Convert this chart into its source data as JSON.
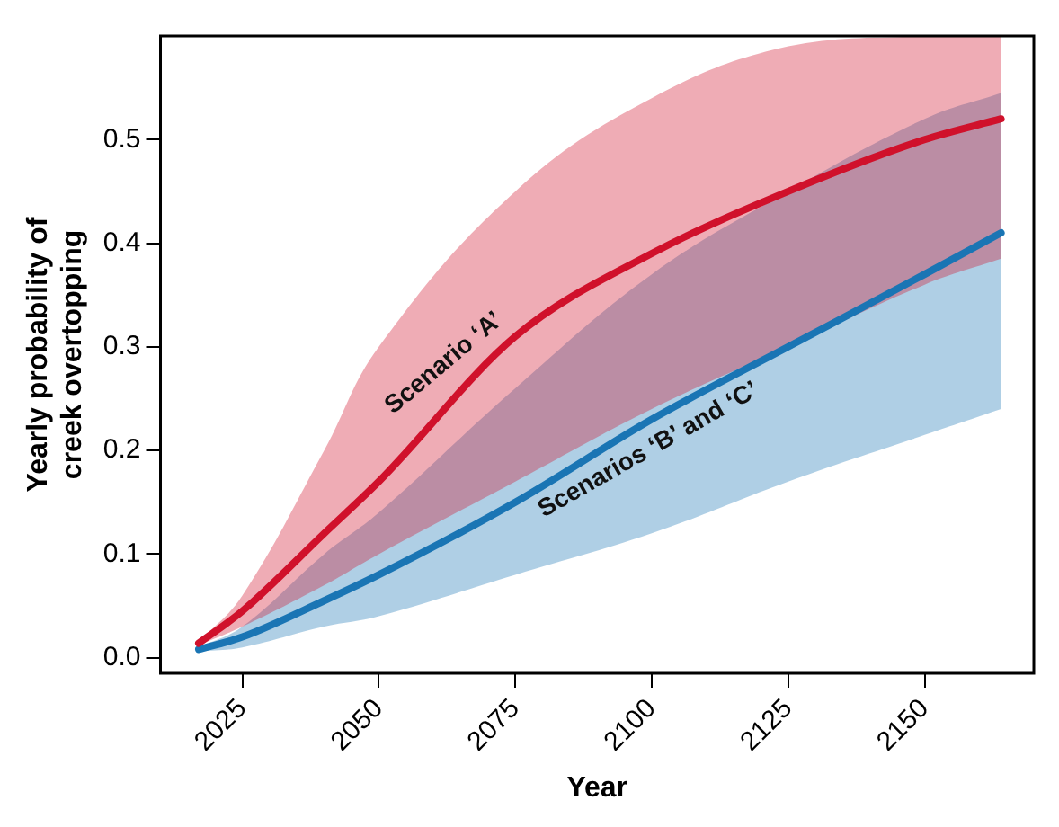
{
  "chart_data": {
    "type": "line",
    "xlabel": "Year",
    "ylabel": "Yearly probability of\ncreek overtopping",
    "x": [
      2017,
      2025,
      2040,
      2050,
      2075,
      2100,
      2125,
      2150,
      2164
    ],
    "series": [
      {
        "name": "Scenario ‘A’",
        "color": "#d0112b",
        "values": [
          0.014,
          0.045,
          0.12,
          0.17,
          0.31,
          0.39,
          0.45,
          0.5,
          0.52
        ],
        "lower": [
          0.012,
          0.03,
          0.07,
          0.1,
          0.17,
          0.24,
          0.3,
          0.36,
          0.385
        ],
        "upper": [
          0.015,
          0.06,
          0.2,
          0.3,
          0.45,
          0.54,
          0.59,
          0.6,
          0.6
        ]
      },
      {
        "name": "Scenarios ‘B’ and ‘C’",
        "color": "#1a75b4",
        "values": [
          0.008,
          0.02,
          0.055,
          0.08,
          0.15,
          0.23,
          0.3,
          0.37,
          0.41
        ],
        "lower": [
          0.006,
          0.01,
          0.03,
          0.04,
          0.08,
          0.12,
          0.17,
          0.215,
          0.24
        ],
        "upper": [
          0.01,
          0.03,
          0.1,
          0.14,
          0.26,
          0.37,
          0.45,
          0.52,
          0.545
        ]
      }
    ],
    "xlim": [
      2010,
      2170
    ],
    "xticks": [
      2025,
      2050,
      2075,
      2100,
      2125,
      2150
    ],
    "ylim": [
      -0.015,
      0.6
    ],
    "yticks": [
      {
        "value": 0,
        "label": "0.0"
      },
      0.1,
      0.2,
      0.3,
      0.4,
      0.5
    ],
    "grid": false,
    "legend": false,
    "marker": "none",
    "line_style": "solid"
  }
}
